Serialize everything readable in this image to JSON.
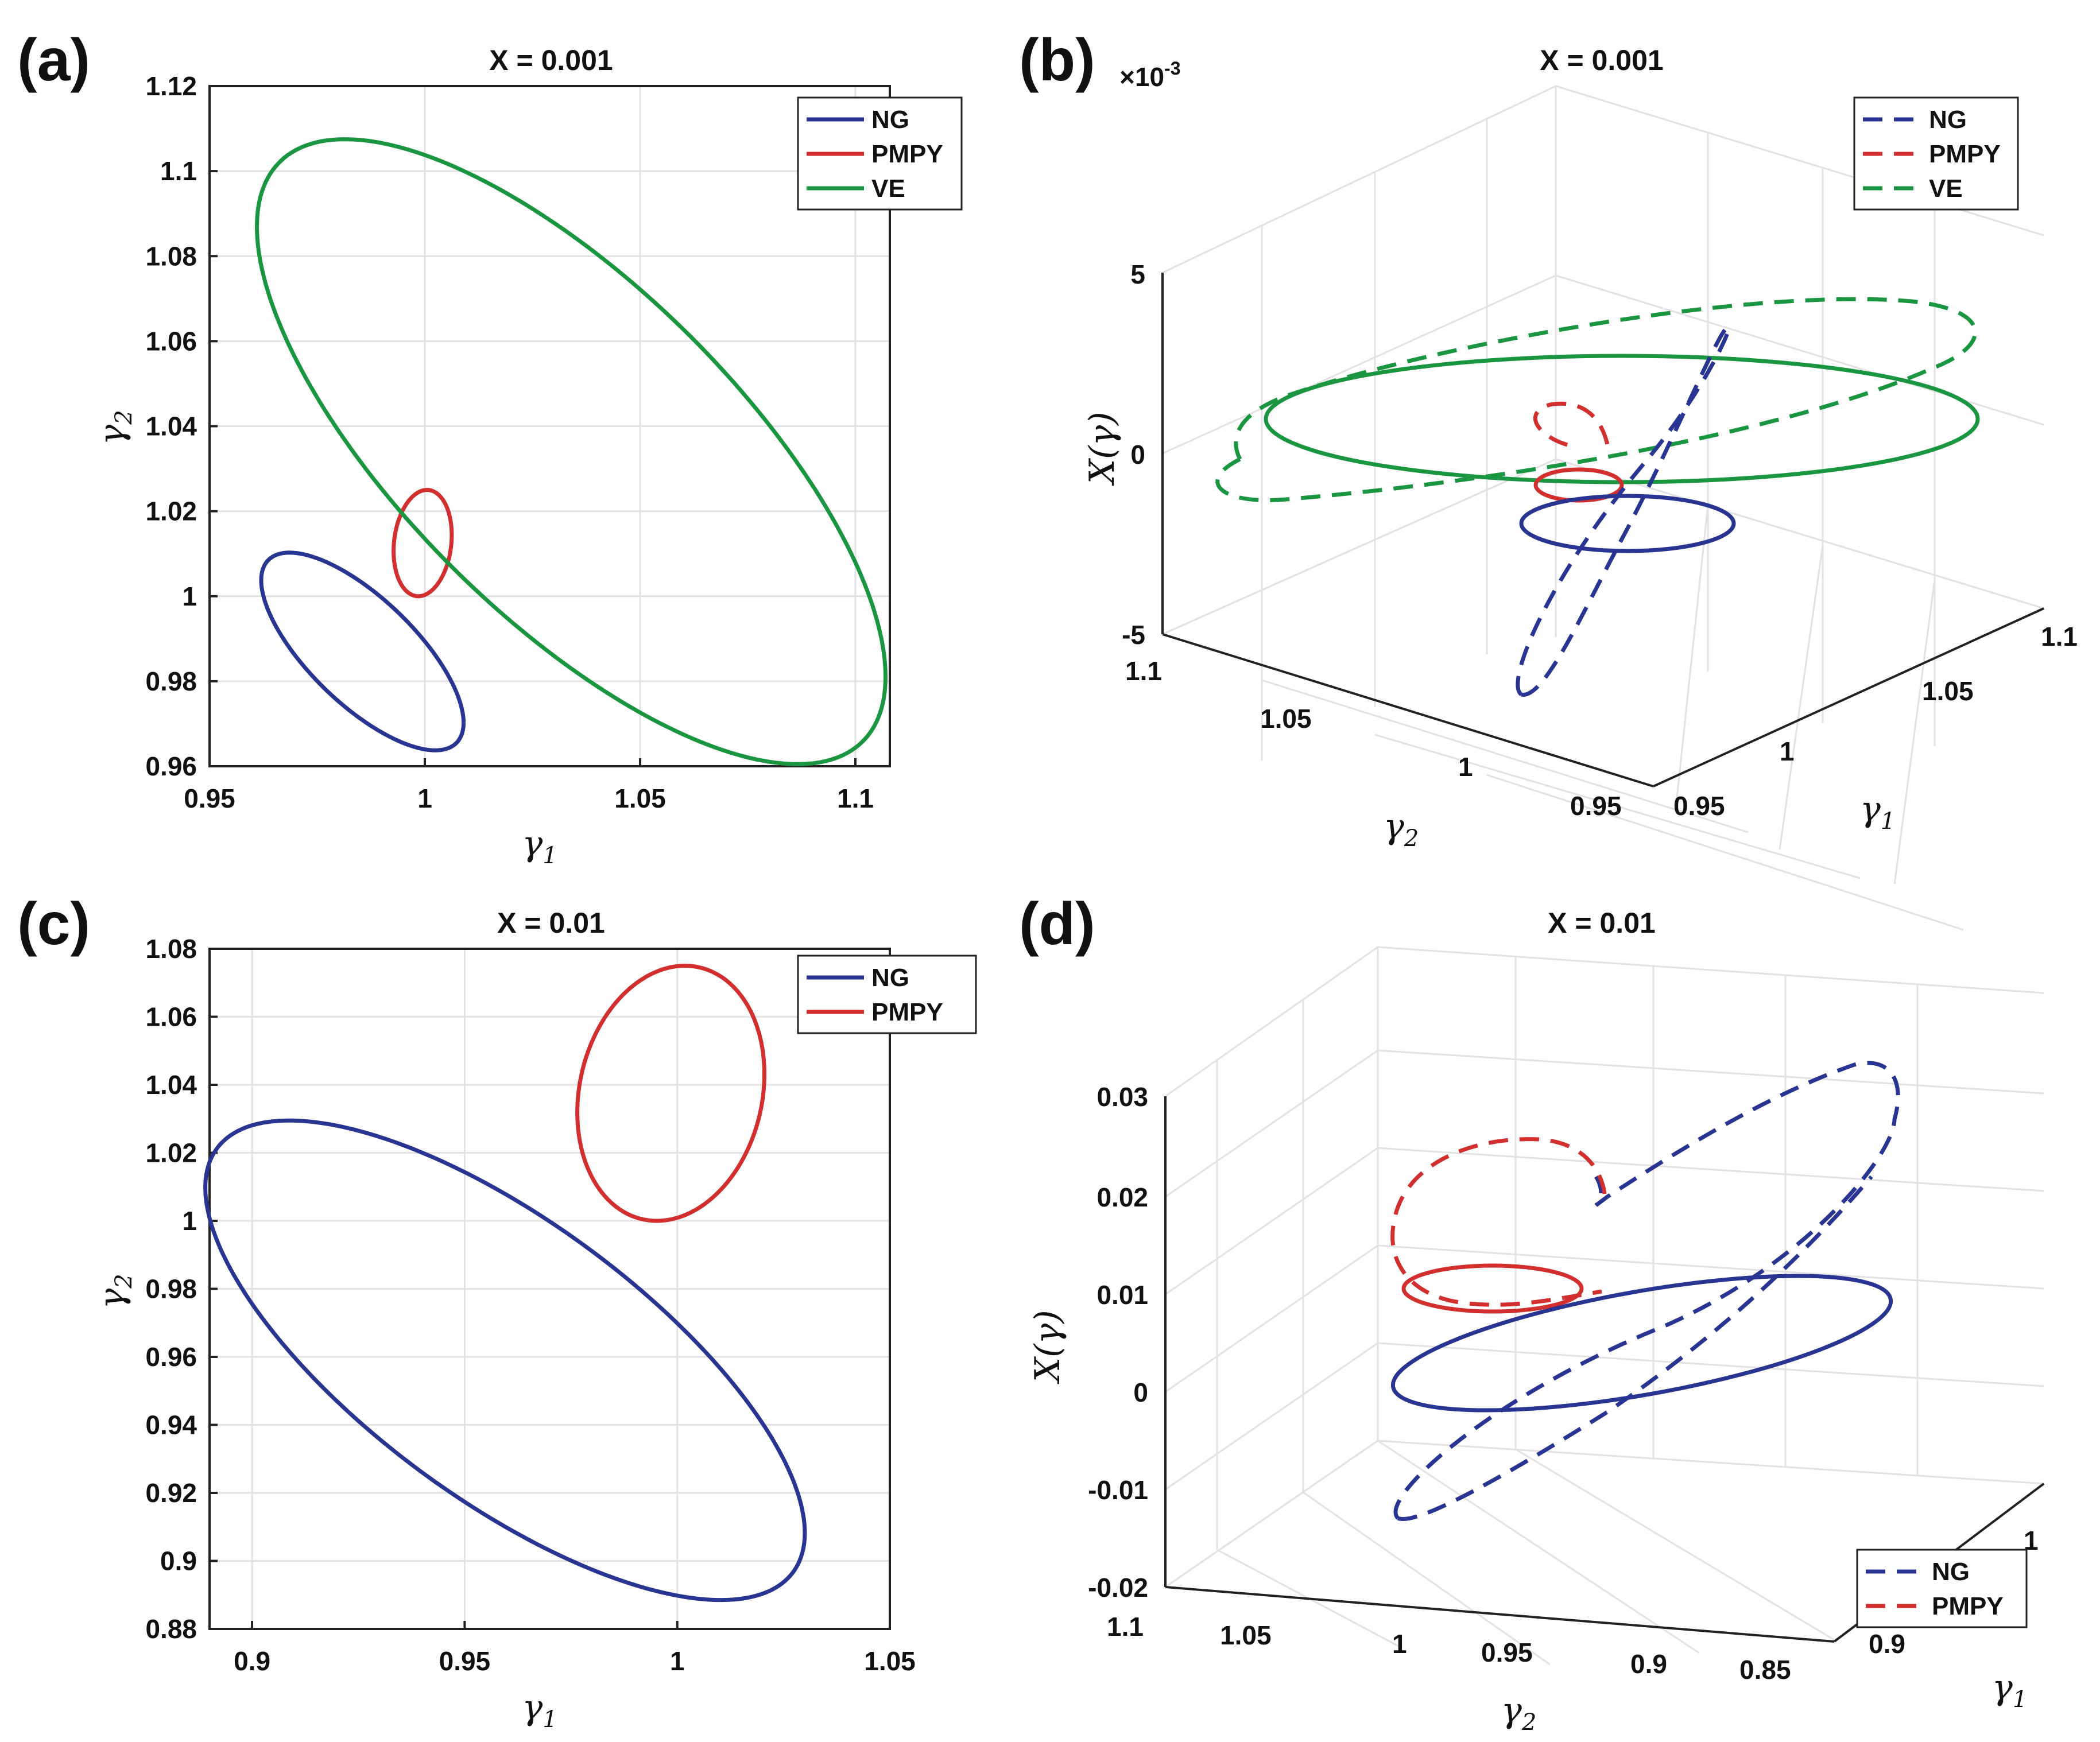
{
  "panels": [
    {
      "label": "(a)",
      "title": "X = 0.001"
    },
    {
      "label": "(b)",
      "title": "X = 0.001"
    },
    {
      "label": "(c)",
      "title": "X = 0.01"
    },
    {
      "label": "(d)",
      "title": "X = 0.01"
    }
  ],
  "colors": {
    "NG": "#283593",
    "PMPY": "#d32f2f",
    "VE": "#1a9641"
  },
  "chart_data": [
    {
      "id": "a",
      "type": "line",
      "title": "X = 0.001",
      "xlabel": "γ1",
      "ylabel": "γ2",
      "xlim": [
        0.95,
        1.108
      ],
      "ylim": [
        0.96,
        1.12
      ],
      "xticks": [
        0.95,
        1,
        1.05,
        1.1
      ],
      "xtick_labels": [
        "0.95",
        "1",
        "1.05",
        "1.1"
      ],
      "yticks": [
        0.96,
        0.98,
        1,
        1.02,
        1.04,
        1.06,
        1.08,
        1.1,
        1.12
      ],
      "ytick_labels": [
        "0.96",
        "0.98",
        "1",
        "1.02",
        "1.04",
        "1.06",
        "1.08",
        "1.1",
        "1.12"
      ],
      "grid": true,
      "legend_position": "top-right",
      "series": [
        {
          "name": "NG",
          "style": "solid",
          "shape": "ellipse",
          "center": [
            0.9855,
            0.987
          ],
          "x_range": [
            0.9635,
            1.0105
          ],
          "y_range": [
            0.964,
            1.0105
          ]
        },
        {
          "name": "PMPY",
          "style": "solid",
          "shape": "ellipse",
          "center": [
            0.9995,
            1.0125
          ],
          "x_range": [
            0.9935,
            1.007
          ],
          "y_range": [
            1.0,
            1.025
          ]
        },
        {
          "name": "VE",
          "style": "solid",
          "shape": "ellipse",
          "center": [
            1.034,
            1.034
          ],
          "x_range": [
            0.9615,
            1.1075
          ],
          "y_range": [
            0.96,
            1.107
          ]
        }
      ]
    },
    {
      "id": "b",
      "type": "line3d",
      "title": "X = 0.001",
      "xlabel": "γ1",
      "ylabel": "γ2",
      "zlabel": "X(γ)",
      "zticks": [
        -5,
        0,
        5
      ],
      "ztick_labels": [
        "-5",
        "0",
        "5"
      ],
      "z_exponent": "×10-3",
      "xticks": [
        0.95,
        1,
        1.05,
        1.1
      ],
      "xtick_labels": [
        "0.95",
        "1",
        "1.05",
        "1.1"
      ],
      "yticks": [
        0.95,
        1,
        1.05,
        1.1
      ],
      "ytick_labels": [
        "0.95",
        "1",
        "1.05",
        "1.1"
      ],
      "grid": true,
      "legend_position": "top-right",
      "series": [
        {
          "name": "NG",
          "style": "dashed",
          "legend": true
        },
        {
          "name": "PMPY",
          "style": "dashed",
          "legend": true
        },
        {
          "name": "VE",
          "style": "dashed",
          "legend": true
        },
        {
          "name": "NG",
          "style": "solid",
          "legend": false
        },
        {
          "name": "PMPY",
          "style": "solid",
          "legend": false
        },
        {
          "name": "VE",
          "style": "solid",
          "legend": false
        }
      ]
    },
    {
      "id": "c",
      "type": "line",
      "title": "X = 0.01",
      "xlabel": "γ1",
      "ylabel": "γ2",
      "xlim": [
        0.89,
        1.05
      ],
      "ylim": [
        0.88,
        1.08
      ],
      "xticks": [
        0.9,
        0.95,
        1,
        1.05
      ],
      "xtick_labels": [
        "0.9",
        "0.95",
        "1",
        "1.05"
      ],
      "yticks": [
        0.88,
        0.9,
        0.92,
        0.94,
        0.96,
        0.98,
        1,
        1.02,
        1.04,
        1.06,
        1.08
      ],
      "ytick_labels": [
        "0.88",
        "0.9",
        "0.92",
        "0.94",
        "0.96",
        "0.98",
        "1",
        "1.02",
        "1.04",
        "1.06",
        "1.08"
      ],
      "grid": true,
      "legend_position": "top-right",
      "series": [
        {
          "name": "NG",
          "style": "solid",
          "shape": "ellipse",
          "center": [
            0.9595,
            0.959
          ],
          "x_range": [
            0.889,
            1.03
          ],
          "y_range": [
            0.889,
            1.03
          ]
        },
        {
          "name": "PMPY",
          "style": "solid",
          "shape": "ellipse",
          "center": [
            0.9985,
            1.0375
          ],
          "x_range": [
            0.976,
            1.02
          ],
          "y_range": [
            1.0,
            1.075
          ]
        }
      ]
    },
    {
      "id": "d",
      "type": "line3d",
      "title": "X = 0.01",
      "xlabel": "γ1",
      "ylabel": "γ2",
      "zlabel": "X(γ)",
      "zticks": [
        -0.02,
        -0.01,
        0,
        0.01,
        0.02,
        0.03
      ],
      "ztick_labels": [
        "-0.02",
        "-0.01",
        "0",
        "0.01",
        "0.02",
        "0.03"
      ],
      "xticks": [
        0.9,
        1
      ],
      "xtick_labels": [
        "0.9",
        "1"
      ],
      "yticks": [
        1.1,
        1.05,
        1,
        0.95,
        0.9,
        0.85
      ],
      "ytick_labels": [
        "1.1",
        "1.05",
        "1",
        "0.95",
        "0.9",
        "0.85"
      ],
      "grid": true,
      "legend_position": "bottom-right",
      "series": [
        {
          "name": "NG",
          "style": "dashed",
          "legend": true
        },
        {
          "name": "PMPY",
          "style": "dashed",
          "legend": true
        },
        {
          "name": "NG",
          "style": "solid",
          "legend": false
        },
        {
          "name": "PMPY",
          "style": "solid",
          "legend": false
        }
      ]
    }
  ]
}
